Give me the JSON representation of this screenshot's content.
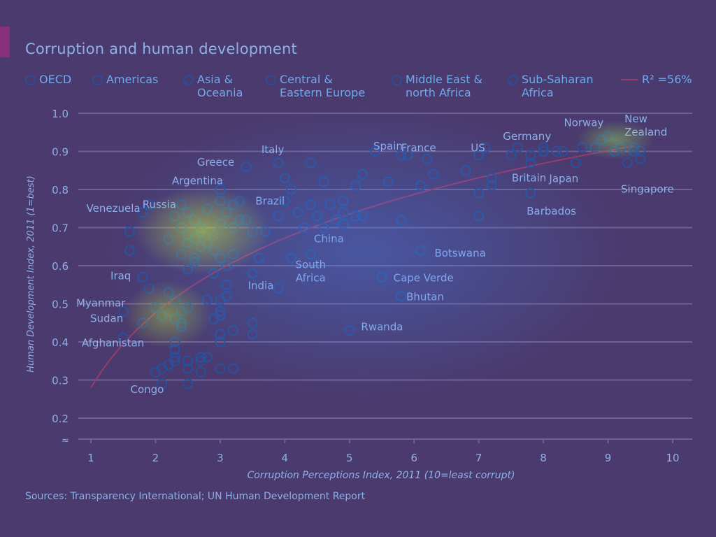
{
  "colors": {
    "background": "#4a3a6e",
    "grid": "#6f6191",
    "marker": "#2a4f9a",
    "trend": "#9a3a6a",
    "text": "#8fb0e8"
  },
  "legend": {
    "items": [
      {
        "label": "OECD"
      },
      {
        "label": "Americas"
      },
      {
        "label": "Asia &\nOceania"
      },
      {
        "label": "Central &\nEastern Europe"
      },
      {
        "label": "Middle East &\nnorth Africa"
      },
      {
        "label": "Sub-Saharan\nAfrica"
      }
    ],
    "trend_label": "R² =56%"
  },
  "source": "Sources: Transparency International; UN Human Development Report",
  "chart_data": {
    "type": "scatter",
    "title": "Corruption and human development",
    "xlabel": "Corruption Perceptions Index, 2011 (10=least corrupt)",
    "ylabel": "Human Development Index, 2011 (1=best)",
    "xlim": [
      1,
      10
    ],
    "ylim": [
      0.2,
      1.0
    ],
    "xticks": [
      1,
      2,
      3,
      4,
      5,
      6,
      7,
      8,
      9,
      10
    ],
    "yticks": [
      0.2,
      0.3,
      0.4,
      0.5,
      0.6,
      0.7,
      0.8,
      0.9,
      1.0
    ],
    "grid": true,
    "trend": {
      "type": "log",
      "a": 0.28,
      "b": 0.283
    },
    "points": [
      [
        1.8,
        0.74
      ],
      [
        1.9,
        0.76
      ],
      [
        1.6,
        0.69
      ],
      [
        1.6,
        0.64
      ],
      [
        2.4,
        0.76
      ],
      [
        2.5,
        0.74
      ],
      [
        2.3,
        0.73
      ],
      [
        2.6,
        0.72
      ],
      [
        2.8,
        0.75
      ],
      [
        2.7,
        0.7
      ],
      [
        2.4,
        0.7
      ],
      [
        2.5,
        0.68
      ],
      [
        2.6,
        0.67
      ],
      [
        2.7,
        0.69
      ],
      [
        2.9,
        0.68
      ],
      [
        2.5,
        0.66
      ],
      [
        2.7,
        0.65
      ],
      [
        2.8,
        0.66
      ],
      [
        2.4,
        0.63
      ],
      [
        2.6,
        0.62
      ],
      [
        2.9,
        0.64
      ],
      [
        2.2,
        0.67
      ],
      [
        2.5,
        0.59
      ],
      [
        2.6,
        0.61
      ],
      [
        3.0,
        0.71
      ],
      [
        3.1,
        0.74
      ],
      [
        3.0,
        0.77
      ],
      [
        3.0,
        0.8
      ],
      [
        3.2,
        0.76
      ],
      [
        3.3,
        0.77
      ],
      [
        3.4,
        0.72
      ],
      [
        3.2,
        0.7
      ],
      [
        3.5,
        0.69
      ],
      [
        3.3,
        0.72
      ],
      [
        3.4,
        0.86
      ],
      [
        3.1,
        0.6
      ],
      [
        3.2,
        0.63
      ],
      [
        3.0,
        0.62
      ],
      [
        3.1,
        0.55
      ],
      [
        3.5,
        0.58
      ],
      [
        3.6,
        0.62
      ],
      [
        3.7,
        0.69
      ],
      [
        3.9,
        0.73
      ],
      [
        3.9,
        0.87
      ],
      [
        4.0,
        0.77
      ],
      [
        4.1,
        0.8
      ],
      [
        4.2,
        0.74
      ],
      [
        4.0,
        0.83
      ],
      [
        4.3,
        0.7
      ],
      [
        4.4,
        0.76
      ],
      [
        4.5,
        0.73
      ],
      [
        4.7,
        0.76
      ],
      [
        4.8,
        0.72
      ],
      [
        4.9,
        0.77
      ],
      [
        4.9,
        0.74
      ],
      [
        4.9,
        0.71
      ],
      [
        4.4,
        0.87
      ],
      [
        4.6,
        0.82
      ],
      [
        4.1,
        0.62
      ],
      [
        4.4,
        0.63
      ],
      [
        4.6,
        0.7
      ],
      [
        3.9,
        0.54
      ],
      [
        2.9,
        0.58
      ],
      [
        1.8,
        0.57
      ],
      [
        1.9,
        0.54
      ],
      [
        2.2,
        0.53
      ],
      [
        2.3,
        0.51
      ],
      [
        2.0,
        0.49
      ],
      [
        2.1,
        0.47
      ],
      [
        2.4,
        0.48
      ],
      [
        2.4,
        0.45
      ],
      [
        2.4,
        0.44
      ],
      [
        2.3,
        0.46
      ],
      [
        2.5,
        0.49
      ],
      [
        2.8,
        0.51
      ],
      [
        2.9,
        0.46
      ],
      [
        3.0,
        0.47
      ],
      [
        3.0,
        0.51
      ],
      [
        3.1,
        0.52
      ],
      [
        3.0,
        0.48
      ],
      [
        3.0,
        0.42
      ],
      [
        3.0,
        0.4
      ],
      [
        3.2,
        0.43
      ],
      [
        3.5,
        0.45
      ],
      [
        3.5,
        0.42
      ],
      [
        2.3,
        0.4
      ],
      [
        2.3,
        0.38
      ],
      [
        2.3,
        0.36
      ],
      [
        2.3,
        0.35
      ],
      [
        2.2,
        0.34
      ],
      [
        2.1,
        0.33
      ],
      [
        2.0,
        0.32
      ],
      [
        2.1,
        0.29
      ],
      [
        2.5,
        0.33
      ],
      [
        2.5,
        0.35
      ],
      [
        2.7,
        0.35
      ],
      [
        2.7,
        0.32
      ],
      [
        2.8,
        0.36
      ],
      [
        2.7,
        0.36
      ],
      [
        2.5,
        0.29
      ],
      [
        3.0,
        0.33
      ],
      [
        3.2,
        0.33
      ],
      [
        1.5,
        0.41
      ],
      [
        1.5,
        0.48
      ],
      [
        1.8,
        0.45
      ],
      [
        5.0,
        0.43
      ],
      [
        5.1,
        0.73
      ],
      [
        5.2,
        0.73
      ],
      [
        5.1,
        0.81
      ],
      [
        5.2,
        0.84
      ],
      [
        5.4,
        0.9
      ],
      [
        5.6,
        0.82
      ],
      [
        5.5,
        0.57
      ],
      [
        5.8,
        0.72
      ],
      [
        5.8,
        0.52
      ],
      [
        5.8,
        0.89
      ],
      [
        5.9,
        0.89
      ],
      [
        6.1,
        0.81
      ],
      [
        6.1,
        0.64
      ],
      [
        6.2,
        0.88
      ],
      [
        6.3,
        0.84
      ],
      [
        6.8,
        0.85
      ],
      [
        7.0,
        0.89
      ],
      [
        7.1,
        0.91
      ],
      [
        7.0,
        0.73
      ],
      [
        7.2,
        0.81
      ],
      [
        7.0,
        0.79
      ],
      [
        7.2,
        0.83
      ],
      [
        7.5,
        0.89
      ],
      [
        7.6,
        0.91
      ],
      [
        7.8,
        0.89
      ],
      [
        7.8,
        0.87
      ],
      [
        7.8,
        0.79
      ],
      [
        8.0,
        0.91
      ],
      [
        8.0,
        0.9
      ],
      [
        8.2,
        0.9
      ],
      [
        8.3,
        0.9
      ],
      [
        8.5,
        0.87
      ],
      [
        8.6,
        0.91
      ],
      [
        8.8,
        0.91
      ],
      [
        8.9,
        0.93
      ],
      [
        9.0,
        0.94
      ],
      [
        9.1,
        0.9
      ],
      [
        9.2,
        0.91
      ],
      [
        9.3,
        0.87
      ],
      [
        9.4,
        0.9
      ],
      [
        9.5,
        0.9
      ],
      [
        9.5,
        0.88
      ],
      [
        9.4,
        0.91
      ]
    ],
    "labels": [
      {
        "text": "Venezuela",
        "x": 1.85,
        "y": 0.745
      },
      {
        "text": "Russia",
        "x": 2.45,
        "y": 0.755
      },
      {
        "text": "Argentina",
        "x": 2.65,
        "y": 0.795
      },
      {
        "text": "Greece",
        "x": 3.35,
        "y": 0.855
      },
      {
        "text": "Italy",
        "x": 3.9,
        "y": 0.87
      },
      {
        "text": "Brazil",
        "x": 3.75,
        "y": 0.72
      },
      {
        "text": "China",
        "x": 3.6,
        "y": 0.68
      },
      {
        "text": "South\nAfrica",
        "x": 4.4,
        "y": 0.63
      },
      {
        "text": "India",
        "x": 3.3,
        "y": 0.55
      },
      {
        "text": "Iraq",
        "x": 1.75,
        "y": 0.575
      },
      {
        "text": "Myanmar",
        "x": 1.6,
        "y": 0.485
      },
      {
        "text": "Sudan",
        "x": 1.5,
        "y": 0.46
      },
      {
        "text": "Afghanistan",
        "x": 1.5,
        "y": 0.41
      },
      {
        "text": "Congo",
        "x": 2.0,
        "y": 0.295
      },
      {
        "text": "Spain",
        "x": 5.9,
        "y": 0.89
      },
      {
        "text": "France",
        "x": 6.2,
        "y": 0.885
      },
      {
        "text": "US",
        "x": 7.05,
        "y": 0.885
      },
      {
        "text": "Germany",
        "x": 8.05,
        "y": 0.905
      },
      {
        "text": "Norway",
        "x": 8.95,
        "y": 0.94
      },
      {
        "text": "New\nZealand",
        "x": 9.45,
        "y": 0.91
      },
      {
        "text": "Britain",
        "x": 7.8,
        "y": 0.865
      },
      {
        "text": "Japan",
        "x": 8.1,
        "y": 0.9
      },
      {
        "text": "Singapore",
        "x": 9.2,
        "y": 0.865
      },
      {
        "text": "Barbados",
        "x": 7.85,
        "y": 0.785
      },
      {
        "text": "Botswana",
        "x": 6.1,
        "y": 0.635
      },
      {
        "text": "Cape Verde",
        "x": 5.55,
        "y": 0.57
      },
      {
        "text": "Bhutan",
        "x": 5.75,
        "y": 0.52
      },
      {
        "text": "Rwanda",
        "x": 5.05,
        "y": 0.43
      }
    ]
  }
}
